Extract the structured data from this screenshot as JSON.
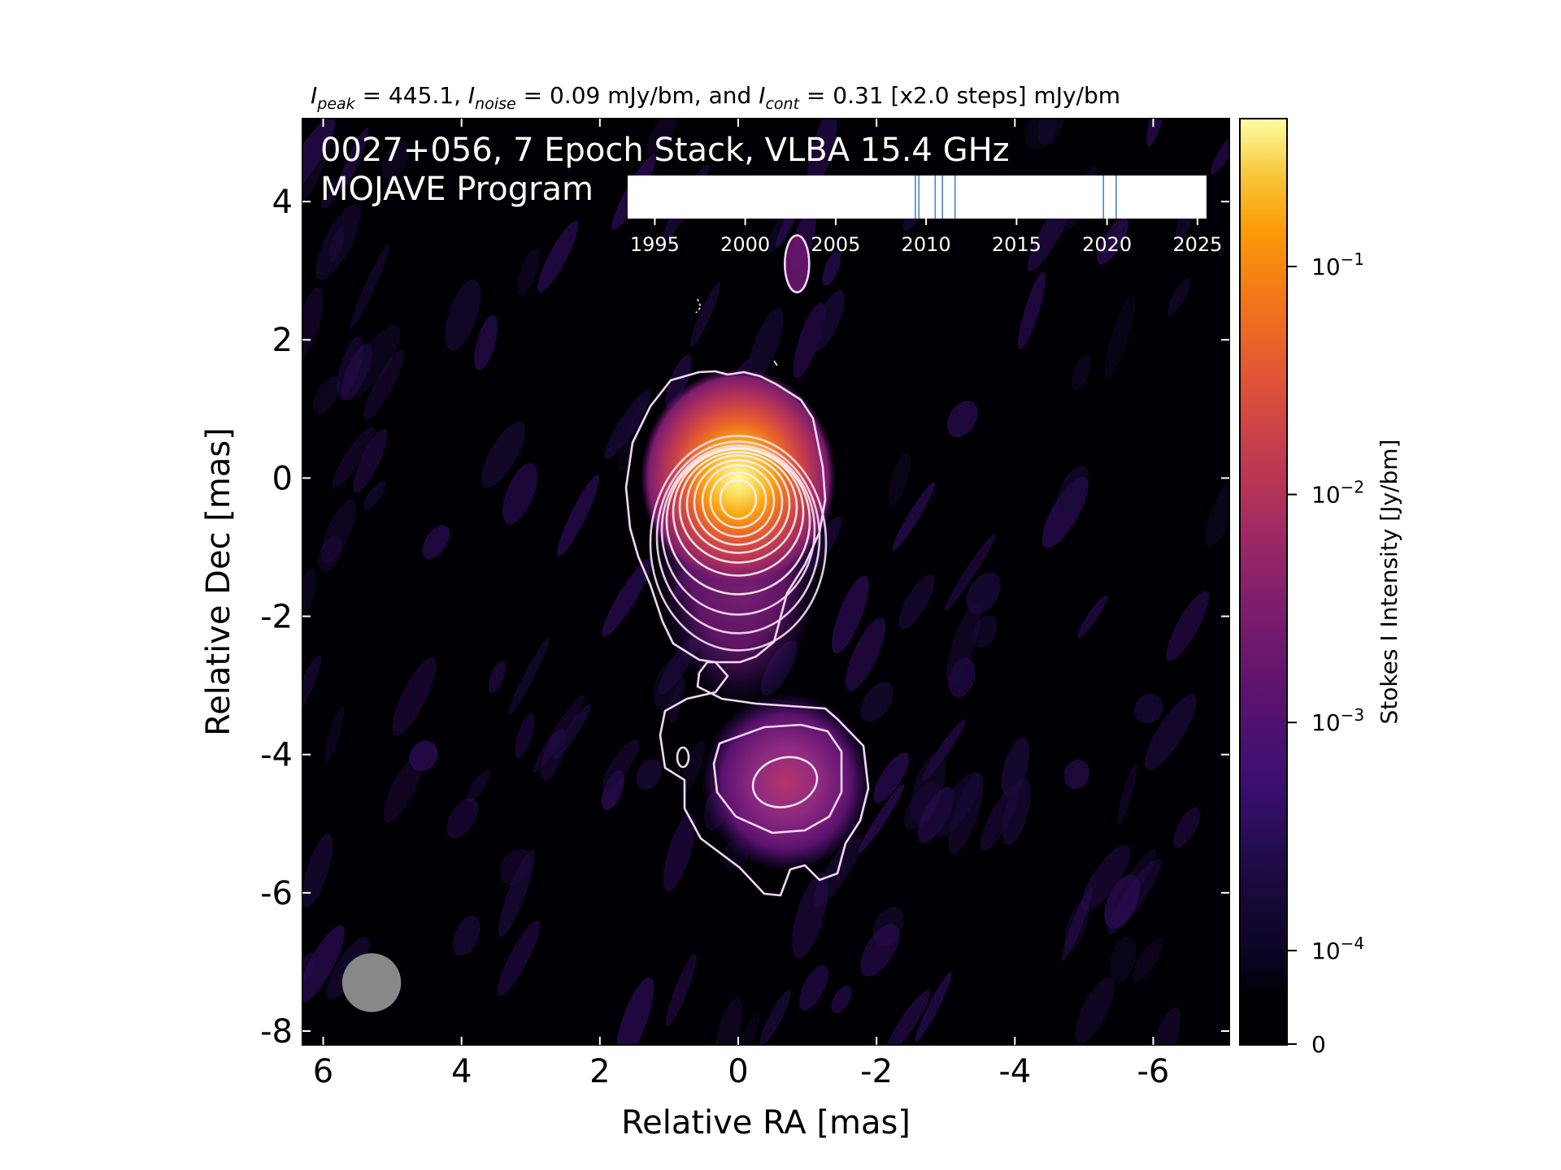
{
  "chart_data": {
    "type": "heatmap",
    "header": {
      "peak_sym": "I",
      "peak_sub": "peak",
      "peak_text": " = 445.1, ",
      "noise_sym": "I",
      "noise_sub": "noise",
      "noise_text": " = 0.09 mJy/bm, and ",
      "cont_sym": "I",
      "cont_sub": "cont",
      "cont_text": " = 0.31 [x2.0 steps] mJy/bm"
    },
    "title_line1": "0027+056, 7 Epoch Stack, VLBA 15.4 GHz",
    "title_line2": "MOJAVE Program",
    "xlabel": "Relative RA [mas]",
    "ylabel": "Relative Dec [mas]",
    "xlim": [
      6.3,
      -7.1
    ],
    "ylim": [
      -8.2,
      5.2
    ],
    "xticks": [
      6,
      4,
      2,
      0,
      -2,
      -4,
      -6
    ],
    "xtick_labels": [
      "6",
      "4",
      "2",
      "0",
      "-2",
      "-4",
      "-6"
    ],
    "yticks": [
      4,
      2,
      0,
      -2,
      -4,
      -6,
      -8
    ],
    "ytick_labels": [
      "4",
      "2",
      "0",
      "-2",
      "-4",
      "-6",
      "-8"
    ],
    "colorbar": {
      "label": "Stokes I Intensity [Jy/bm]",
      "scale": "log",
      "vmax": 0.445,
      "ticks": [
        {
          "value": 0.1,
          "base": "10",
          "exp": "−1"
        },
        {
          "value": 0.01,
          "base": "10",
          "exp": "−2"
        },
        {
          "value": 0.001,
          "base": "10",
          "exp": "−3"
        },
        {
          "value": 0.0001,
          "base": "10",
          "exp": "−4"
        },
        {
          "value": 0,
          "label": "0"
        }
      ],
      "colormap": "inferno"
    },
    "components": [
      {
        "name": "core",
        "ra": 0.0,
        "dec": 0.0,
        "peak": 0.445
      },
      {
        "name": "outer-jet-knot",
        "ra": -0.7,
        "dec": -4.4,
        "peak": 0.0022
      },
      {
        "name": "north-feature",
        "ra": -0.85,
        "dec": 3.1,
        "peak": 0.0004
      }
    ],
    "contour_base_mjy": 0.31,
    "contour_step": 2.0,
    "beam": {
      "ra": 5.3,
      "dec": -7.3,
      "major_mas": 0.85,
      "minor_mas": 0.85
    },
    "epochs_inset": {
      "xlim": [
        1993.5,
        2025.5
      ],
      "ticks": [
        1995,
        2000,
        2005,
        2010,
        2015,
        2020,
        2025
      ],
      "tick_labels": [
        "1995",
        "2000",
        "2005",
        "2010",
        "2015",
        "2020",
        "2025"
      ],
      "epochs": [
        2009.4,
        2009.6,
        2010.5,
        2010.9,
        2011.6,
        2019.8,
        2020.5
      ]
    }
  }
}
